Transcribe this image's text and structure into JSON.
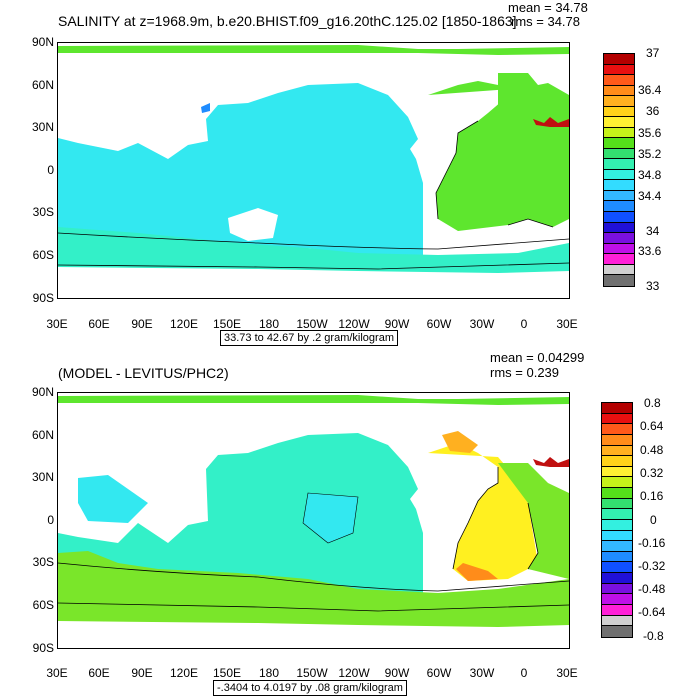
{
  "panel1": {
    "title": "SALINITY at z=1968.9m, b.e20.BHIST.f09_g16.20thC.125.02 [1850-1863]",
    "mean": "mean = 34.78",
    "rms": "rms = 34.78",
    "subtitle": "33.73 to 42.67 by .2 gram/kilogram",
    "lat_labels": [
      "90N",
      "60N",
      "30N",
      "0",
      "30S",
      "60S",
      "90S"
    ],
    "lon_labels": [
      "30E",
      "60E",
      "90E",
      "120E",
      "150E",
      "180",
      "150W",
      "120W",
      "90W",
      "60W",
      "30W",
      "0",
      "30E"
    ],
    "colorbar": {
      "labels": [
        "37",
        "36.4",
        "36",
        "35.6",
        "35.2",
        "34.8",
        "34.4",
        "34",
        "33.6",
        "33"
      ],
      "colors": [
        "#b30000",
        "#e81010",
        "#ff5a1a",
        "#ff8c1a",
        "#ffb020",
        "#ffd21a",
        "#fff033",
        "#c6f21a",
        "#55e01a",
        "#33e070",
        "#33f0b0",
        "#33f0e0",
        "#33dcff",
        "#33b8ff",
        "#1f8cff",
        "#1050ff",
        "#2010d8",
        "#7a10e0",
        "#c010e8",
        "#ff20d8",
        "#d0d0d0",
        "#707070"
      ]
    },
    "colors": {
      "ocean": "#33e8f0",
      "atlantic": "#5ee62e",
      "mediterranean": "#c01010",
      "deep": "#1f8cff",
      "contour": "#000000"
    }
  },
  "panel2": {
    "title": "(MODEL - LEVITUS/PHC2)",
    "mean": "mean = 0.04299",
    "rms": "rms = 0.239",
    "subtitle": "-.3404 to 4.0197 by .08 gram/kilogram",
    "lat_labels": [
      "90N",
      "60N",
      "30N",
      "0",
      "30S",
      "60S",
      "90S"
    ],
    "lon_labels": [
      "30E",
      "60E",
      "90E",
      "120E",
      "150E",
      "180",
      "150W",
      "120W",
      "90W",
      "60W",
      "30W",
      "0",
      "30E"
    ],
    "colorbar": {
      "labels": [
        "0.8",
        "0.64",
        "0.48",
        "0.32",
        "0.16",
        "0",
        "-0.16",
        "-0.32",
        "-0.48",
        "-0.64",
        "-0.8"
      ],
      "colors": [
        "#b30000",
        "#e81010",
        "#ff5a1a",
        "#ff8c1a",
        "#ffb020",
        "#ffd21a",
        "#fff033",
        "#c6f21a",
        "#55e01a",
        "#33e070",
        "#33f0b0",
        "#33f0e0",
        "#33dcff",
        "#33b8ff",
        "#1f8cff",
        "#1050ff",
        "#2010d8",
        "#7a10e0",
        "#c010e8",
        "#ff20d8",
        "#d0d0d0",
        "#707070"
      ]
    },
    "colors": {
      "ocean": "#33f0c8",
      "southern": "#7ae62a",
      "atlantic_pos": "#fff020",
      "atlantic_mid": "#ffd21a",
      "mediterranean": "#c01010",
      "contour": "#000000"
    }
  }
}
